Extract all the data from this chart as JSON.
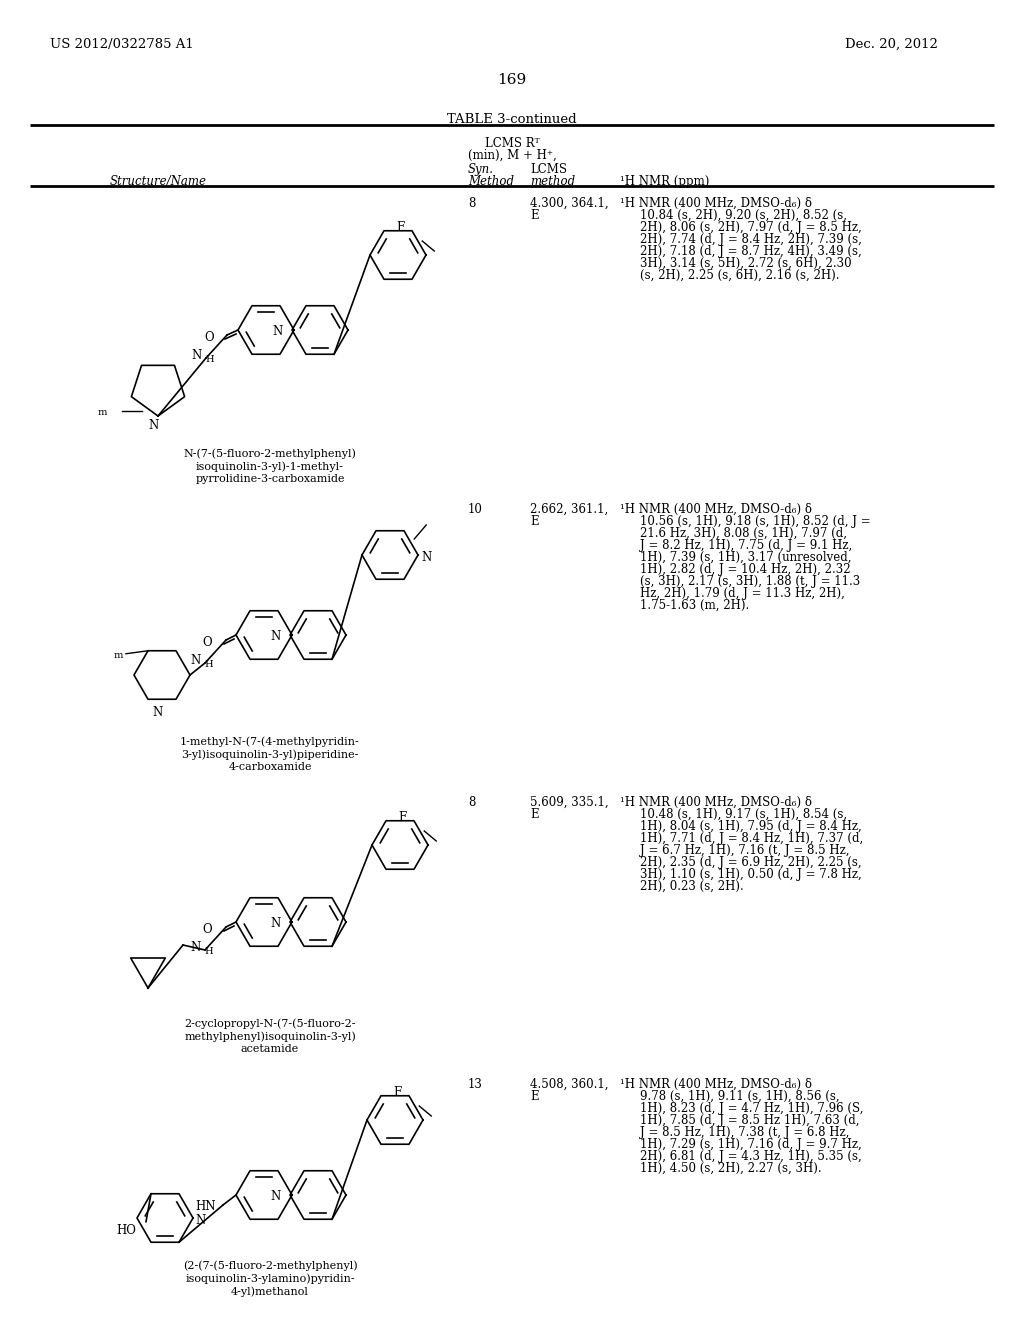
{
  "page_header_left": "US 2012/0322785 A1",
  "page_header_right": "Dec. 20, 2012",
  "page_number": "169",
  "table_title": "TABLE 3-continued",
  "bg_color": "#ffffff",
  "rows": [
    {
      "syn_method": "8",
      "lcms1": "4.300, 364.1,",
      "lcms2": "E",
      "nmr_lines": [
        "¹H NMR (400 MHz, DMSO-d₆) δ",
        "10.84 (s, 2H), 9.20 (s, 2H), 8.52 (s,",
        "2H), 8.06 (s, 2H), 7.97 (d, J = 8.5 Hz,",
        "2H), 7.74 (d, J = 8.4 Hz, 2H), 7.39 (s,",
        "2H), 7.18 (d, J = 8.7 Hz, 4H), 3.49 (s,",
        "3H), 3.14 (s, 5H), 2.72 (s, 6H), 2.30",
        "(s, 2H), 2.25 (s, 6H), 2.16 (s, 2H)."
      ],
      "name_lines": [
        "N-(7-(5-fluoro-2-methylphenyl)",
        "isoquinolin-3-yl)-1-methyl-",
        "pyrrolidine-3-carboxamide"
      ]
    },
    {
      "syn_method": "10",
      "lcms1": "2.662, 361.1,",
      "lcms2": "E",
      "nmr_lines": [
        "¹H NMR (400 MHz, DMSO-d₆) δ",
        "10.56 (s, 1H), 9.18 (s, 1H), 8.52 (d, J =",
        "21.6 Hz, 3H), 8.08 (s, 1H), 7.97 (d,",
        "J = 8.2 Hz, 1H), 7.75 (d, J = 9.1 Hz,",
        "1H), 7.39 (s, 1H), 3.17 (unresolved,",
        "1H), 2.82 (d, J = 10.4 Hz, 2H), 2.32",
        "(s, 3H), 2.17 (s, 3H), 1.88 (t, J = 11.3",
        "Hz, 2H), 1.79 (d, J = 11.3 Hz, 2H),",
        "1.75-1.63 (m, 2H)."
      ],
      "name_lines": [
        "1-methyl-N-(7-(4-methylpyridin-",
        "3-yl)isoquinolin-3-yl)piperidine-",
        "4-carboxamide"
      ]
    },
    {
      "syn_method": "8",
      "lcms1": "5.609, 335.1,",
      "lcms2": "E",
      "nmr_lines": [
        "¹H NMR (400 MHz, DMSO-d₆) δ",
        "10.48 (s, 1H), 9.17 (s, 1H), 8.54 (s,",
        "1H), 8.04 (s, 1H), 7.95 (d, J = 8.4 Hz,",
        "1H), 7.71 (d, J = 8.4 Hz, 1H), 7.37 (d,",
        "J = 6.7 Hz, 1H), 7.16 (t, J = 8.5 Hz,",
        "2H), 2.35 (d, J = 6.9 Hz, 2H), 2.25 (s,",
        "3H), 1.10 (s, 1H), 0.50 (d, J = 7.8 Hz,",
        "2H), 0.23 (s, 2H)."
      ],
      "name_lines": [
        "2-cyclopropyl-N-(7-(5-fluoro-2-",
        "methylphenyl)isoquinolin-3-yl)",
        "acetamide"
      ]
    },
    {
      "syn_method": "13",
      "lcms1": "4.508, 360.1,",
      "lcms2": "E",
      "nmr_lines": [
        "¹H NMR (400 MHz, DMSO-d₆) δ",
        "9.78 (s, 1H), 9.11 (s, 1H), 8.56 (s,",
        "1H), 8.23 (d, J = 4.7 Hz, 1H), 7.96 (S,",
        "1H), 7.85 (d, J = 8.5 Hz 1H), 7.63 (d,",
        "J = 8.5 Hz, 1H), 7.38 (t, J = 6.8 Hz,",
        "1H), 7.29 (s, 1H), 7.16 (d, J = 9.7 Hz,",
        "2H), 6.81 (d, J = 4.3 Hz, 1H), 5.35 (s,",
        "1H), 4.50 (s, 2H), 2.27 (s, 3H)."
      ],
      "name_lines": [
        "(2-(7-(5-fluoro-2-methylphenyl)",
        "isoquinolin-3-ylamino)pyridin-",
        "4-yl)methanol"
      ]
    }
  ]
}
